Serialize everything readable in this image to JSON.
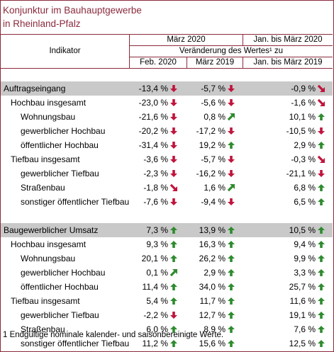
{
  "title": {
    "line1": "Konjunktur im Bauhauptgewerbe",
    "line2": "in Rheinland-Pfalz"
  },
  "header": {
    "indikator": "Indikator",
    "maerz2020": "März 2020",
    "jan_maerz2020": "Jan. bis März 2020",
    "veraenderung": "Veränderung des Wertes¹ zu",
    "feb2020": "Feb. 2020",
    "maerz2019": "März 2019",
    "jan_maerz2019": "Jan. bis März 2019"
  },
  "colors": {
    "accent": "#8a2a3c",
    "up": "#2e8b2e",
    "down": "#c0143c",
    "group_bg": "#c9c9c9"
  },
  "rows": [
    {
      "label": "Auftragseingang",
      "indent": 0,
      "group": true,
      "values": [
        {
          "text": "-13,4 %",
          "icon": "arrow-down-icon"
        },
        {
          "text": "-5,7 %",
          "icon": "arrow-down-icon"
        },
        {
          "text": "-0,9 %",
          "icon": "arrow-down-right-icon"
        }
      ]
    },
    {
      "label": "Hochbau insgesamt",
      "indent": 1,
      "values": [
        {
          "text": "-23,0 %",
          "icon": "arrow-down-icon"
        },
        {
          "text": "-5,6 %",
          "icon": "arrow-down-icon"
        },
        {
          "text": "-1,6 %",
          "icon": "arrow-down-right-icon"
        }
      ]
    },
    {
      "label": "Wohnungsbau",
      "indent": 2,
      "values": [
        {
          "text": "-21,6 %",
          "icon": "arrow-down-icon"
        },
        {
          "text": "0,8 %",
          "icon": "arrow-up-right-icon"
        },
        {
          "text": "10,1 %",
          "icon": "arrow-up-icon"
        }
      ]
    },
    {
      "label": "gewerblicher Hochbau",
      "indent": 2,
      "values": [
        {
          "text": "-20,2 %",
          "icon": "arrow-down-icon"
        },
        {
          "text": "-17,2 %",
          "icon": "arrow-down-icon"
        },
        {
          "text": "-10,5 %",
          "icon": "arrow-down-icon"
        }
      ]
    },
    {
      "label": "öffentlicher Hochbau",
      "indent": 2,
      "values": [
        {
          "text": "-31,4 %",
          "icon": "arrow-down-icon"
        },
        {
          "text": "19,2 %",
          "icon": "arrow-up-icon"
        },
        {
          "text": "2,9 %",
          "icon": "arrow-up-icon"
        }
      ]
    },
    {
      "label": "Tiefbau insgesamt",
      "indent": 1,
      "values": [
        {
          "text": "-3,6 %",
          "icon": "arrow-down-icon"
        },
        {
          "text": "-5,7 %",
          "icon": "arrow-down-icon"
        },
        {
          "text": "-0,3 %",
          "icon": "arrow-down-right-icon"
        }
      ]
    },
    {
      "label": "gewerblicher Tiefbau",
      "indent": 2,
      "values": [
        {
          "text": "-2,3 %",
          "icon": "arrow-down-icon"
        },
        {
          "text": "-16,2 %",
          "icon": "arrow-down-icon"
        },
        {
          "text": "-21,1 %",
          "icon": "arrow-down-icon"
        }
      ]
    },
    {
      "label": "Straßenbau",
      "indent": 2,
      "values": [
        {
          "text": "-1,8 %",
          "icon": "arrow-down-right-icon"
        },
        {
          "text": "1,6 %",
          "icon": "arrow-up-right-icon"
        },
        {
          "text": "6,8 %",
          "icon": "arrow-up-icon"
        }
      ]
    },
    {
      "label": "sonstiger öffentlicher Tiefbau",
      "indent": 2,
      "values": [
        {
          "text": "-7,6 %",
          "icon": "arrow-down-icon"
        },
        {
          "text": "-9,4 %",
          "icon": "arrow-down-icon"
        },
        {
          "text": "6,5 %",
          "icon": "arrow-up-icon"
        }
      ]
    },
    {
      "label": "Baugewerblicher Umsatz",
      "indent": 0,
      "group": true,
      "gap_before": true,
      "values": [
        {
          "text": "7,3 %",
          "icon": "arrow-up-icon"
        },
        {
          "text": "13,9 %",
          "icon": "arrow-up-icon"
        },
        {
          "text": "10,5 %",
          "icon": "arrow-up-icon"
        }
      ]
    },
    {
      "label": "Hochbau insgesamt",
      "indent": 1,
      "values": [
        {
          "text": "9,3 %",
          "icon": "arrow-up-icon"
        },
        {
          "text": "16,3 %",
          "icon": "arrow-up-icon"
        },
        {
          "text": "9,4 %",
          "icon": "arrow-up-icon"
        }
      ]
    },
    {
      "label": "Wohnungsbau",
      "indent": 2,
      "values": [
        {
          "text": "20,1 %",
          "icon": "arrow-up-icon"
        },
        {
          "text": "26,2 %",
          "icon": "arrow-up-icon"
        },
        {
          "text": "9,9 %",
          "icon": "arrow-up-icon"
        }
      ]
    },
    {
      "label": "gewerblicher Hochbau",
      "indent": 2,
      "values": [
        {
          "text": "0,1 %",
          "icon": "arrow-up-right-icon"
        },
        {
          "text": "2,9 %",
          "icon": "arrow-up-icon"
        },
        {
          "text": "3,3 %",
          "icon": "arrow-up-icon"
        }
      ]
    },
    {
      "label": "öffentlicher Hochbau",
      "indent": 2,
      "values": [
        {
          "text": "11,4 %",
          "icon": "arrow-up-icon"
        },
        {
          "text": "34,0 %",
          "icon": "arrow-up-icon"
        },
        {
          "text": "25,7 %",
          "icon": "arrow-up-icon"
        }
      ]
    },
    {
      "label": "Tiefbau insgesamt",
      "indent": 1,
      "values": [
        {
          "text": "5,4 %",
          "icon": "arrow-up-icon"
        },
        {
          "text": "11,7 %",
          "icon": "arrow-up-icon"
        },
        {
          "text": "11,6 %",
          "icon": "arrow-up-icon"
        }
      ]
    },
    {
      "label": "gewerblicher Tiefbau",
      "indent": 2,
      "values": [
        {
          "text": "-2,2 %",
          "icon": "arrow-down-icon"
        },
        {
          "text": "12,7 %",
          "icon": "arrow-up-icon"
        },
        {
          "text": "19,1 %",
          "icon": "arrow-up-icon"
        }
      ]
    },
    {
      "label": "Straßenbau",
      "indent": 2,
      "values": [
        {
          "text": "6,0 %",
          "icon": "arrow-up-icon"
        },
        {
          "text": "8,9 %",
          "icon": "arrow-up-icon"
        },
        {
          "text": "7,6 %",
          "icon": "arrow-up-icon"
        }
      ]
    },
    {
      "label": "sonstiger öffentlicher Tiefbau",
      "indent": 2,
      "values": [
        {
          "text": "11,2 %",
          "icon": "arrow-up-icon"
        },
        {
          "text": "15,6 %",
          "icon": "arrow-up-icon"
        },
        {
          "text": "12,5 %",
          "icon": "arrow-up-icon"
        }
      ]
    }
  ],
  "footnote": "1 Endgültige nominale kalender- und saisonbereinigte Werte."
}
